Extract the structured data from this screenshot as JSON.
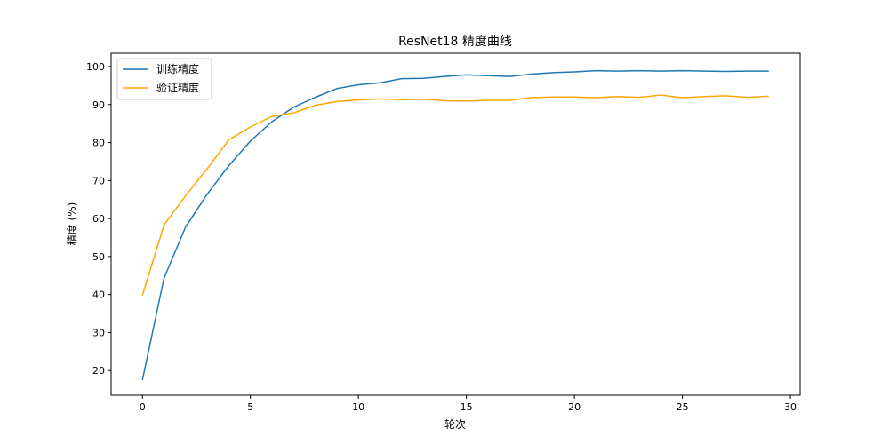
{
  "chart_data": {
    "type": "line",
    "title": "ResNet18 精度曲线",
    "xlabel": "轮次",
    "ylabel": "精度 (%)",
    "xlim": [
      -1.45,
      30.45
    ],
    "ylim": [
      13.5,
      103.5
    ],
    "xticks": [
      0,
      5,
      10,
      15,
      20,
      25,
      30
    ],
    "yticks": [
      20,
      30,
      40,
      50,
      60,
      70,
      80,
      90,
      100
    ],
    "grid": false,
    "legend_position": "top-left",
    "x": [
      0,
      1,
      2,
      3,
      4,
      5,
      6,
      7,
      8,
      9,
      10,
      11,
      12,
      13,
      14,
      15,
      16,
      17,
      18,
      19,
      20,
      21,
      22,
      23,
      24,
      25,
      26,
      27,
      28,
      29
    ],
    "series": [
      {
        "name": "训练精度",
        "color": "#1f77b4",
        "values": [
          17.5,
          44.3,
          57.8,
          66.4,
          73.9,
          80.4,
          85.5,
          89.3,
          91.9,
          94.2,
          95.2,
          95.7,
          96.8,
          96.9,
          97.4,
          97.8,
          97.6,
          97.4,
          98.0,
          98.4,
          98.6,
          98.9,
          98.8,
          98.9,
          98.8,
          98.9,
          98.8,
          98.7,
          98.8,
          98.8
        ]
      },
      {
        "name": "验证精度",
        "color": "#ffa500",
        "values": [
          39.8,
          58.3,
          66.0,
          73.1,
          80.7,
          84.1,
          86.9,
          87.8,
          89.8,
          90.8,
          91.2,
          91.5,
          91.3,
          91.4,
          91.0,
          90.9,
          91.1,
          91.1,
          91.8,
          92.0,
          92.0,
          91.8,
          92.1,
          91.9,
          92.5,
          91.8,
          92.1,
          92.3,
          91.9,
          92.2
        ]
      }
    ]
  }
}
